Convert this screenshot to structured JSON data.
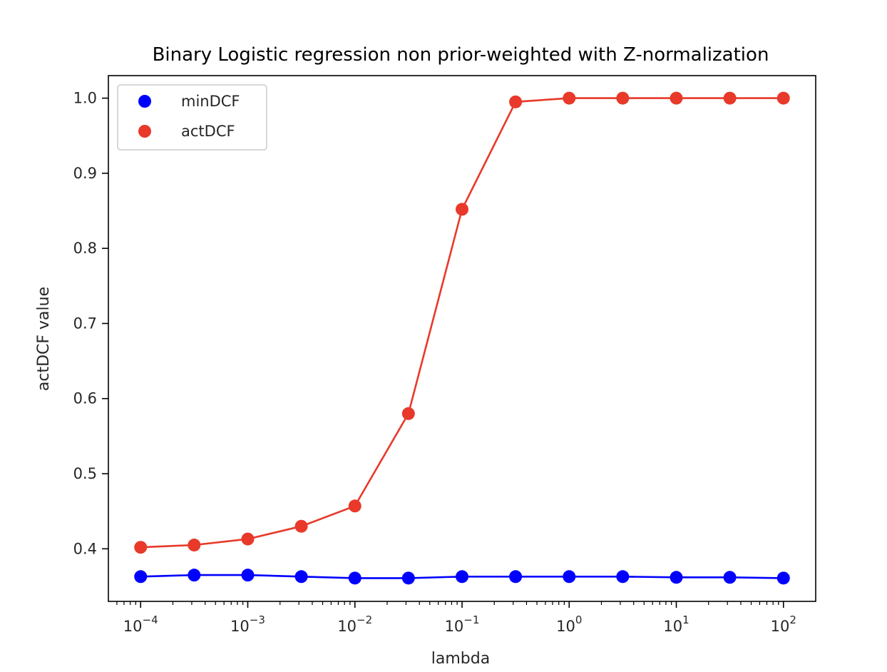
{
  "chart_data": {
    "type": "line",
    "title": "Binary Logistic regression non prior-weighted with Z-normalization",
    "xlabel": "lambda",
    "ylabel": "actDCF value",
    "xscale": "log",
    "xlim": [
      5e-05,
      200
    ],
    "ylim": [
      0.33,
      1.03
    ],
    "x": [
      0.0001,
      0.000316,
      0.001,
      0.00316,
      0.01,
      0.0316,
      0.1,
      0.316,
      1,
      3.16,
      10,
      31.6,
      100
    ],
    "x_ticks": [
      {
        "base": "10",
        "exp": "−4",
        "value": 0.0001
      },
      {
        "base": "10",
        "exp": "−3",
        "value": 0.001
      },
      {
        "base": "10",
        "exp": "−2",
        "value": 0.01
      },
      {
        "base": "10",
        "exp": "−1",
        "value": 0.1
      },
      {
        "base": "10",
        "exp": "0",
        "value": 1
      },
      {
        "base": "10",
        "exp": "1",
        "value": 10
      },
      {
        "base": "10",
        "exp": "2",
        "value": 100
      }
    ],
    "y_ticks": [
      "0.4",
      "0.5",
      "0.6",
      "0.7",
      "0.8",
      "0.9",
      "1.0"
    ],
    "grid": false,
    "legend_position": "top-left",
    "series": [
      {
        "name": "minDCF",
        "color": "#0000ff",
        "values": [
          0.363,
          0.365,
          0.365,
          0.363,
          0.361,
          0.361,
          0.363,
          0.363,
          0.363,
          0.363,
          0.362,
          0.362,
          0.361
        ]
      },
      {
        "name": "actDCF",
        "color": "#e8392a",
        "values": [
          0.402,
          0.405,
          0.413,
          0.43,
          0.457,
          0.58,
          0.852,
          0.995,
          1.0,
          1.0,
          1.0,
          1.0,
          1.0
        ]
      }
    ]
  }
}
